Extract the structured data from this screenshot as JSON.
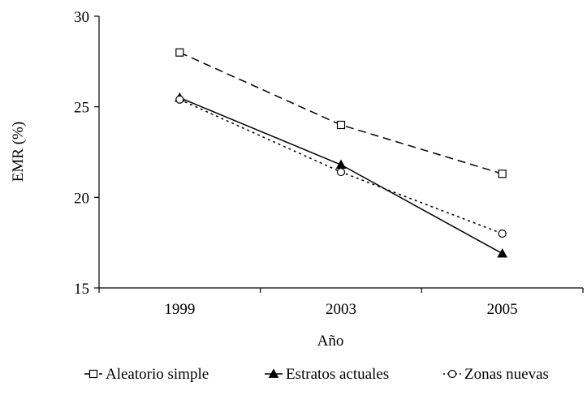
{
  "chart_data": {
    "type": "line",
    "categories": [
      "1999",
      "2003",
      "2005"
    ],
    "xlabel": "Año",
    "ylabel": "EMR (%)",
    "ylim": [
      15,
      30
    ],
    "yticks": [
      "15",
      "20",
      "25",
      "30"
    ],
    "grid": false,
    "legend_position": "bottom",
    "series": [
      {
        "name": "Aleatorio simple",
        "values": [
          28.0,
          24.0,
          21.3
        ],
        "marker": "square-open",
        "dash": "dashed",
        "color": "#000000"
      },
      {
        "name": "Estratos actuales",
        "values": [
          25.5,
          21.8,
          16.9
        ],
        "marker": "triangle-filled",
        "dash": "solid",
        "color": "#000000"
      },
      {
        "name": "Zonas nuevas",
        "values": [
          25.4,
          21.4,
          18.0
        ],
        "marker": "circle-open",
        "dash": "dotted",
        "color": "#000000"
      }
    ]
  }
}
